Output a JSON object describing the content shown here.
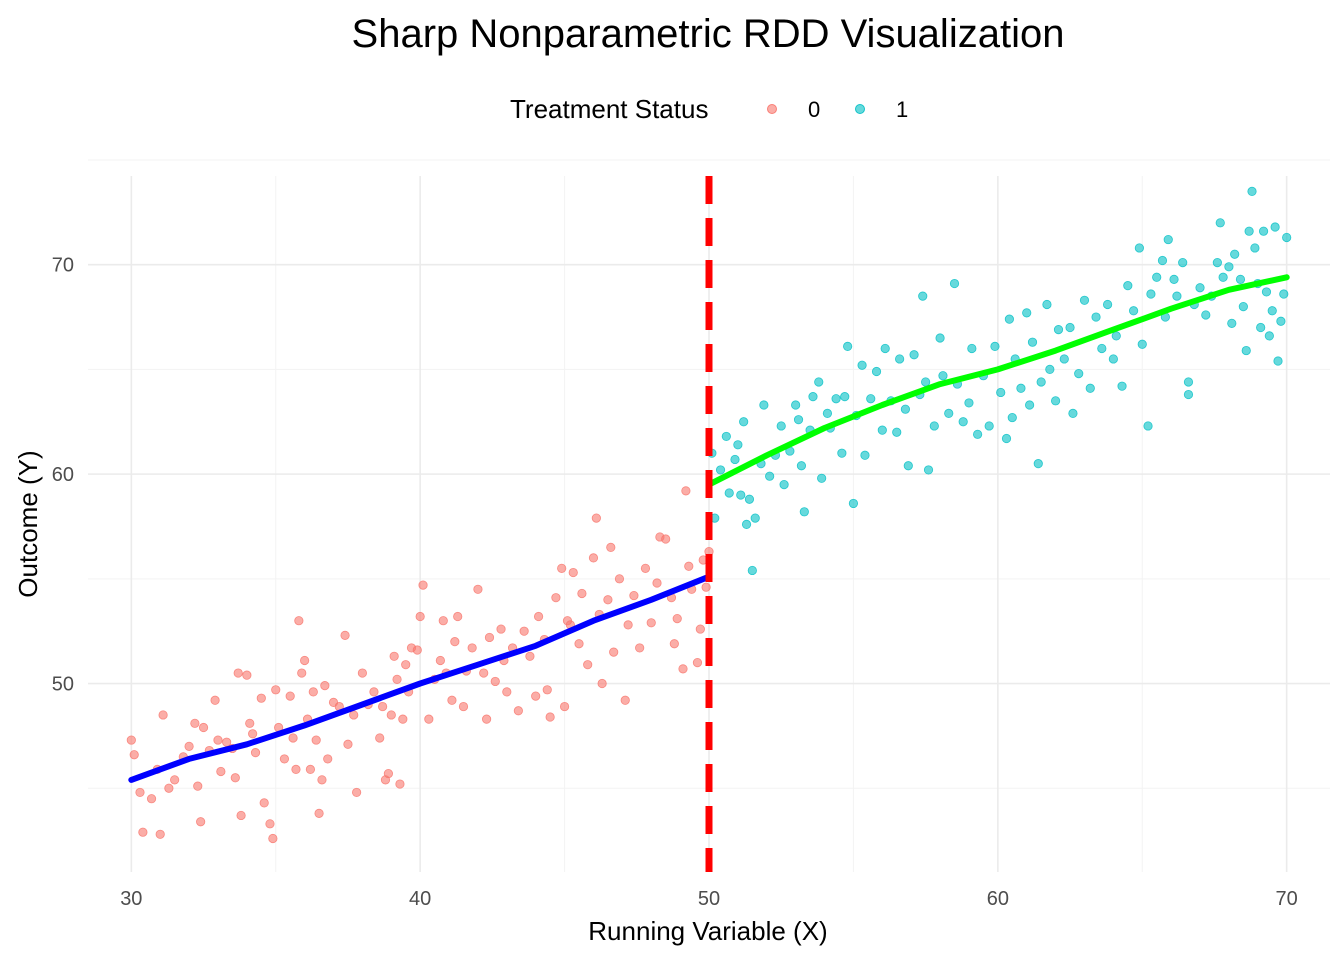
{
  "chart_data": {
    "type": "scatter",
    "title": "Sharp Nonparametric RDD Visualization",
    "xlabel": "Running Variable (X)",
    "ylabel": "Outcome (Y)",
    "xlim": [
      28.5,
      71.5
    ],
    "ylim": [
      41,
      75
    ],
    "x_ticks": [
      30,
      40,
      50,
      60,
      70
    ],
    "y_ticks": [
      50,
      60,
      70
    ],
    "x_tick_labels": [
      "30",
      "40",
      "50",
      "60",
      "70"
    ],
    "y_tick_labels": [
      "50",
      "60",
      "70"
    ],
    "grid": true,
    "legend": {
      "title": "Treatment Status",
      "position": "top",
      "entries": [
        {
          "label": "0",
          "color": "#F8766D"
        },
        {
          "label": "1",
          "color": "#00BFC4"
        }
      ]
    },
    "cutoff": {
      "x": 50,
      "color": "#FF0000",
      "style": "dashed"
    },
    "series": [
      {
        "name": "0",
        "color": "#F8766D",
        "points": [
          [
            30.0,
            47.3
          ],
          [
            30.1,
            46.6
          ],
          [
            30.3,
            44.8
          ],
          [
            30.4,
            42.9
          ],
          [
            30.7,
            44.5
          ],
          [
            30.9,
            45.9
          ],
          [
            31.0,
            42.8
          ],
          [
            31.1,
            48.5
          ],
          [
            31.3,
            45.0
          ],
          [
            31.5,
            45.4
          ],
          [
            31.8,
            46.5
          ],
          [
            32.0,
            47.0
          ],
          [
            32.2,
            48.1
          ],
          [
            32.3,
            45.1
          ],
          [
            32.4,
            43.4
          ],
          [
            32.5,
            47.9
          ],
          [
            32.7,
            46.8
          ],
          [
            32.9,
            49.2
          ],
          [
            33.0,
            47.3
          ],
          [
            33.1,
            45.8
          ],
          [
            33.3,
            47.2
          ],
          [
            33.5,
            46.9
          ],
          [
            33.6,
            45.5
          ],
          [
            33.7,
            50.5
          ],
          [
            33.8,
            43.7
          ],
          [
            34.0,
            50.4
          ],
          [
            34.1,
            48.1
          ],
          [
            34.2,
            47.6
          ],
          [
            34.3,
            46.7
          ],
          [
            34.5,
            49.3
          ],
          [
            34.6,
            44.3
          ],
          [
            34.8,
            43.3
          ],
          [
            34.9,
            42.6
          ],
          [
            35.0,
            49.7
          ],
          [
            35.1,
            47.9
          ],
          [
            35.3,
            46.4
          ],
          [
            35.5,
            49.4
          ],
          [
            35.6,
            47.4
          ],
          [
            35.7,
            45.9
          ],
          [
            35.8,
            53.0
          ],
          [
            35.9,
            50.5
          ],
          [
            36.0,
            51.1
          ],
          [
            36.1,
            48.3
          ],
          [
            36.2,
            45.9
          ],
          [
            36.3,
            49.6
          ],
          [
            36.4,
            47.3
          ],
          [
            36.5,
            43.8
          ],
          [
            36.6,
            45.4
          ],
          [
            36.7,
            49.9
          ],
          [
            36.8,
            46.4
          ],
          [
            37.0,
            49.1
          ],
          [
            37.2,
            48.9
          ],
          [
            37.4,
            52.3
          ],
          [
            37.5,
            47.1
          ],
          [
            37.7,
            48.5
          ],
          [
            37.8,
            44.8
          ],
          [
            38.0,
            50.5
          ],
          [
            38.2,
            49.0
          ],
          [
            38.4,
            49.6
          ],
          [
            38.6,
            47.4
          ],
          [
            38.7,
            48.9
          ],
          [
            38.8,
            45.4
          ],
          [
            38.9,
            45.7
          ],
          [
            39.0,
            48.5
          ],
          [
            39.1,
            51.3
          ],
          [
            39.2,
            50.2
          ],
          [
            39.3,
            45.2
          ],
          [
            39.4,
            48.3
          ],
          [
            39.5,
            50.9
          ],
          [
            39.6,
            49.6
          ],
          [
            39.7,
            51.7
          ],
          [
            39.9,
            51.6
          ],
          [
            40.0,
            53.2
          ],
          [
            40.1,
            54.7
          ],
          [
            40.3,
            48.3
          ],
          [
            40.5,
            50.2
          ],
          [
            40.7,
            51.1
          ],
          [
            40.8,
            53.0
          ],
          [
            40.9,
            50.5
          ],
          [
            41.1,
            49.2
          ],
          [
            41.2,
            52.0
          ],
          [
            41.3,
            53.2
          ],
          [
            41.5,
            48.9
          ],
          [
            41.6,
            50.6
          ],
          [
            41.8,
            51.7
          ],
          [
            42.0,
            54.5
          ],
          [
            42.2,
            50.5
          ],
          [
            42.3,
            48.3
          ],
          [
            42.4,
            52.2
          ],
          [
            42.6,
            50.1
          ],
          [
            42.8,
            52.6
          ],
          [
            42.9,
            51.1
          ],
          [
            43.0,
            49.6
          ],
          [
            43.2,
            51.7
          ],
          [
            43.4,
            48.7
          ],
          [
            43.6,
            52.5
          ],
          [
            43.8,
            51.3
          ],
          [
            44.0,
            49.4
          ],
          [
            44.1,
            53.2
          ],
          [
            44.3,
            52.1
          ],
          [
            44.4,
            49.7
          ],
          [
            44.5,
            48.4
          ],
          [
            44.7,
            54.1
          ],
          [
            44.9,
            55.5
          ],
          [
            45.0,
            48.9
          ],
          [
            45.1,
            53.0
          ],
          [
            45.2,
            52.8
          ],
          [
            45.3,
            55.3
          ],
          [
            45.5,
            51.9
          ],
          [
            45.6,
            54.3
          ],
          [
            45.8,
            50.9
          ],
          [
            46.0,
            56.0
          ],
          [
            46.1,
            57.9
          ],
          [
            46.2,
            53.3
          ],
          [
            46.3,
            50.0
          ],
          [
            46.5,
            54.0
          ],
          [
            46.6,
            56.5
          ],
          [
            46.7,
            51.5
          ],
          [
            46.9,
            55.0
          ],
          [
            47.1,
            49.2
          ],
          [
            47.2,
            52.8
          ],
          [
            47.4,
            54.2
          ],
          [
            47.6,
            51.7
          ],
          [
            47.8,
            55.5
          ],
          [
            48.0,
            52.9
          ],
          [
            48.2,
            54.8
          ],
          [
            48.3,
            57.0
          ],
          [
            48.5,
            56.9
          ],
          [
            48.7,
            54.1
          ],
          [
            48.8,
            51.9
          ],
          [
            48.9,
            53.1
          ],
          [
            49.1,
            50.7
          ],
          [
            49.2,
            59.2
          ],
          [
            49.3,
            55.6
          ],
          [
            49.4,
            54.5
          ],
          [
            49.6,
            51.0
          ],
          [
            49.7,
            52.6
          ],
          [
            49.8,
            55.9
          ],
          [
            49.9,
            54.6
          ],
          [
            50.0,
            56.3
          ]
        ]
      },
      {
        "name": "1",
        "color": "#00BFC4",
        "points": [
          [
            50.1,
            61.0
          ],
          [
            50.2,
            57.9
          ],
          [
            50.4,
            60.2
          ],
          [
            50.6,
            61.8
          ],
          [
            50.7,
            59.1
          ],
          [
            50.9,
            60.7
          ],
          [
            51.0,
            61.4
          ],
          [
            51.1,
            59.0
          ],
          [
            51.2,
            62.5
          ],
          [
            51.3,
            57.6
          ],
          [
            51.4,
            58.8
          ],
          [
            51.5,
            55.4
          ],
          [
            51.6,
            57.9
          ],
          [
            51.8,
            60.5
          ],
          [
            51.9,
            63.3
          ],
          [
            52.1,
            59.9
          ],
          [
            52.3,
            60.9
          ],
          [
            52.5,
            62.3
          ],
          [
            52.6,
            59.5
          ],
          [
            52.8,
            61.1
          ],
          [
            53.0,
            63.3
          ],
          [
            53.1,
            62.6
          ],
          [
            53.2,
            60.4
          ],
          [
            53.3,
            58.2
          ],
          [
            53.5,
            62.1
          ],
          [
            53.6,
            63.7
          ],
          [
            53.8,
            64.4
          ],
          [
            53.9,
            59.8
          ],
          [
            54.1,
            62.9
          ],
          [
            54.2,
            62.2
          ],
          [
            54.4,
            63.6
          ],
          [
            54.6,
            61.0
          ],
          [
            54.7,
            63.7
          ],
          [
            54.8,
            66.1
          ],
          [
            55.0,
            58.6
          ],
          [
            55.1,
            62.8
          ],
          [
            55.3,
            65.2
          ],
          [
            55.4,
            60.9
          ],
          [
            55.6,
            63.6
          ],
          [
            55.8,
            64.9
          ],
          [
            56.0,
            62.1
          ],
          [
            56.1,
            66.0
          ],
          [
            56.3,
            63.5
          ],
          [
            56.5,
            62.0
          ],
          [
            56.6,
            65.5
          ],
          [
            56.8,
            63.1
          ],
          [
            56.9,
            60.4
          ],
          [
            57.1,
            65.7
          ],
          [
            57.3,
            63.8
          ],
          [
            57.4,
            68.5
          ],
          [
            57.5,
            64.4
          ],
          [
            57.6,
            60.2
          ],
          [
            57.8,
            62.3
          ],
          [
            58.0,
            66.5
          ],
          [
            58.1,
            64.7
          ],
          [
            58.3,
            62.9
          ],
          [
            58.5,
            69.1
          ],
          [
            58.6,
            64.3
          ],
          [
            58.8,
            62.5
          ],
          [
            59.0,
            63.4
          ],
          [
            59.1,
            66.0
          ],
          [
            59.3,
            61.9
          ],
          [
            59.5,
            64.7
          ],
          [
            59.7,
            62.3
          ],
          [
            59.9,
            66.1
          ],
          [
            60.1,
            63.9
          ],
          [
            60.3,
            61.7
          ],
          [
            60.4,
            67.4
          ],
          [
            60.5,
            62.7
          ],
          [
            60.6,
            65.5
          ],
          [
            60.8,
            64.1
          ],
          [
            61.0,
            67.7
          ],
          [
            61.1,
            63.3
          ],
          [
            61.2,
            66.3
          ],
          [
            61.4,
            60.5
          ],
          [
            61.5,
            64.4
          ],
          [
            61.7,
            68.1
          ],
          [
            61.8,
            65.0
          ],
          [
            62.0,
            63.5
          ],
          [
            62.1,
            66.9
          ],
          [
            62.3,
            65.5
          ],
          [
            62.5,
            67.0
          ],
          [
            62.6,
            62.9
          ],
          [
            62.8,
            64.8
          ],
          [
            63.0,
            68.3
          ],
          [
            63.2,
            64.1
          ],
          [
            63.4,
            67.5
          ],
          [
            63.6,
            66.0
          ],
          [
            63.8,
            68.1
          ],
          [
            64.0,
            65.5
          ],
          [
            64.1,
            66.6
          ],
          [
            64.3,
            64.2
          ],
          [
            64.5,
            69.0
          ],
          [
            64.7,
            67.8
          ],
          [
            64.9,
            70.8
          ],
          [
            65.0,
            66.2
          ],
          [
            65.2,
            62.3
          ],
          [
            65.3,
            68.6
          ],
          [
            65.5,
            69.4
          ],
          [
            65.7,
            70.2
          ],
          [
            65.8,
            67.5
          ],
          [
            65.9,
            71.2
          ],
          [
            66.1,
            69.3
          ],
          [
            66.2,
            68.5
          ],
          [
            66.4,
            70.1
          ],
          [
            66.6,
            64.4
          ],
          [
            66.6,
            63.8
          ],
          [
            66.8,
            68.1
          ],
          [
            67.0,
            68.9
          ],
          [
            67.2,
            67.6
          ],
          [
            67.4,
            68.5
          ],
          [
            67.6,
            70.1
          ],
          [
            67.7,
            72.0
          ],
          [
            67.8,
            69.4
          ],
          [
            68.0,
            69.9
          ],
          [
            68.1,
            67.2
          ],
          [
            68.2,
            70.5
          ],
          [
            68.4,
            69.3
          ],
          [
            68.5,
            68.0
          ],
          [
            68.6,
            65.9
          ],
          [
            68.7,
            71.6
          ],
          [
            68.8,
            73.5
          ],
          [
            68.9,
            70.8
          ],
          [
            69.0,
            69.1
          ],
          [
            69.1,
            67.0
          ],
          [
            69.2,
            71.6
          ],
          [
            69.3,
            68.7
          ],
          [
            69.4,
            66.6
          ],
          [
            69.5,
            67.8
          ],
          [
            69.6,
            71.8
          ],
          [
            69.7,
            65.4
          ],
          [
            69.8,
            67.3
          ],
          [
            69.9,
            68.6
          ],
          [
            70.0,
            71.3
          ]
        ]
      }
    ],
    "fits": [
      {
        "color": "#0000FF",
        "points": [
          [
            30.0,
            45.4
          ],
          [
            32.0,
            46.4
          ],
          [
            34.0,
            47.1
          ],
          [
            36.0,
            48.0
          ],
          [
            38.0,
            49.0
          ],
          [
            40.0,
            50.0
          ],
          [
            42.0,
            50.9
          ],
          [
            44.0,
            51.8
          ],
          [
            46.0,
            53.0
          ],
          [
            48.0,
            54.0
          ],
          [
            50.0,
            55.1
          ]
        ]
      },
      {
        "color": "#00FF00",
        "points": [
          [
            50.0,
            59.5
          ],
          [
            52.0,
            60.9
          ],
          [
            54.0,
            62.2
          ],
          [
            56.0,
            63.3
          ],
          [
            58.0,
            64.3
          ],
          [
            60.0,
            65.0
          ],
          [
            62.0,
            65.9
          ],
          [
            64.0,
            66.9
          ],
          [
            66.0,
            67.9
          ],
          [
            68.0,
            68.8
          ],
          [
            70.0,
            69.4
          ]
        ]
      }
    ]
  }
}
